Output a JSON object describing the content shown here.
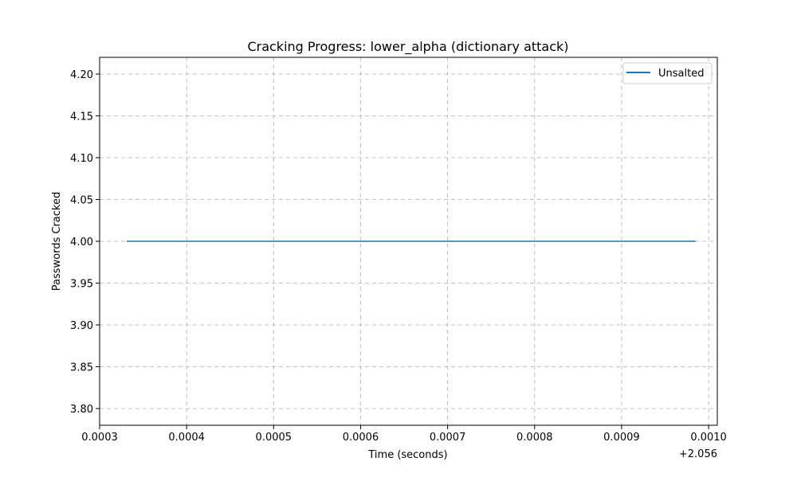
{
  "chart_data": {
    "type": "line",
    "title": "Cracking Progress: lower_alpha (dictionary attack)",
    "xlabel": "Time (seconds)",
    "ylabel": "Passwords Cracked",
    "x_offset_label": "+2.056",
    "x_ticks": [
      0.0003,
      0.0004,
      0.0005,
      0.0006,
      0.0007,
      0.0008,
      0.0009,
      0.001
    ],
    "x_tick_labels": [
      "0.0003",
      "0.0004",
      "0.0005",
      "0.0006",
      "0.0007",
      "0.0008",
      "0.0009",
      "0.0010"
    ],
    "y_ticks": [
      3.8,
      3.85,
      3.9,
      3.95,
      4.0,
      4.05,
      4.1,
      4.15,
      4.2
    ],
    "y_tick_labels": [
      "3.80",
      "3.85",
      "3.90",
      "3.95",
      "4.00",
      "4.05",
      "4.10",
      "4.15",
      "4.20"
    ],
    "xlim": [
      0.0003,
      0.00101
    ],
    "ylim": [
      3.78,
      4.22
    ],
    "grid": true,
    "legend_position": "top-right",
    "series": [
      {
        "name": "Unsalted",
        "color": "#1f77b4",
        "x": [
          0.000331,
          0.000985
        ],
        "y": [
          4.0,
          4.0
        ]
      }
    ]
  }
}
